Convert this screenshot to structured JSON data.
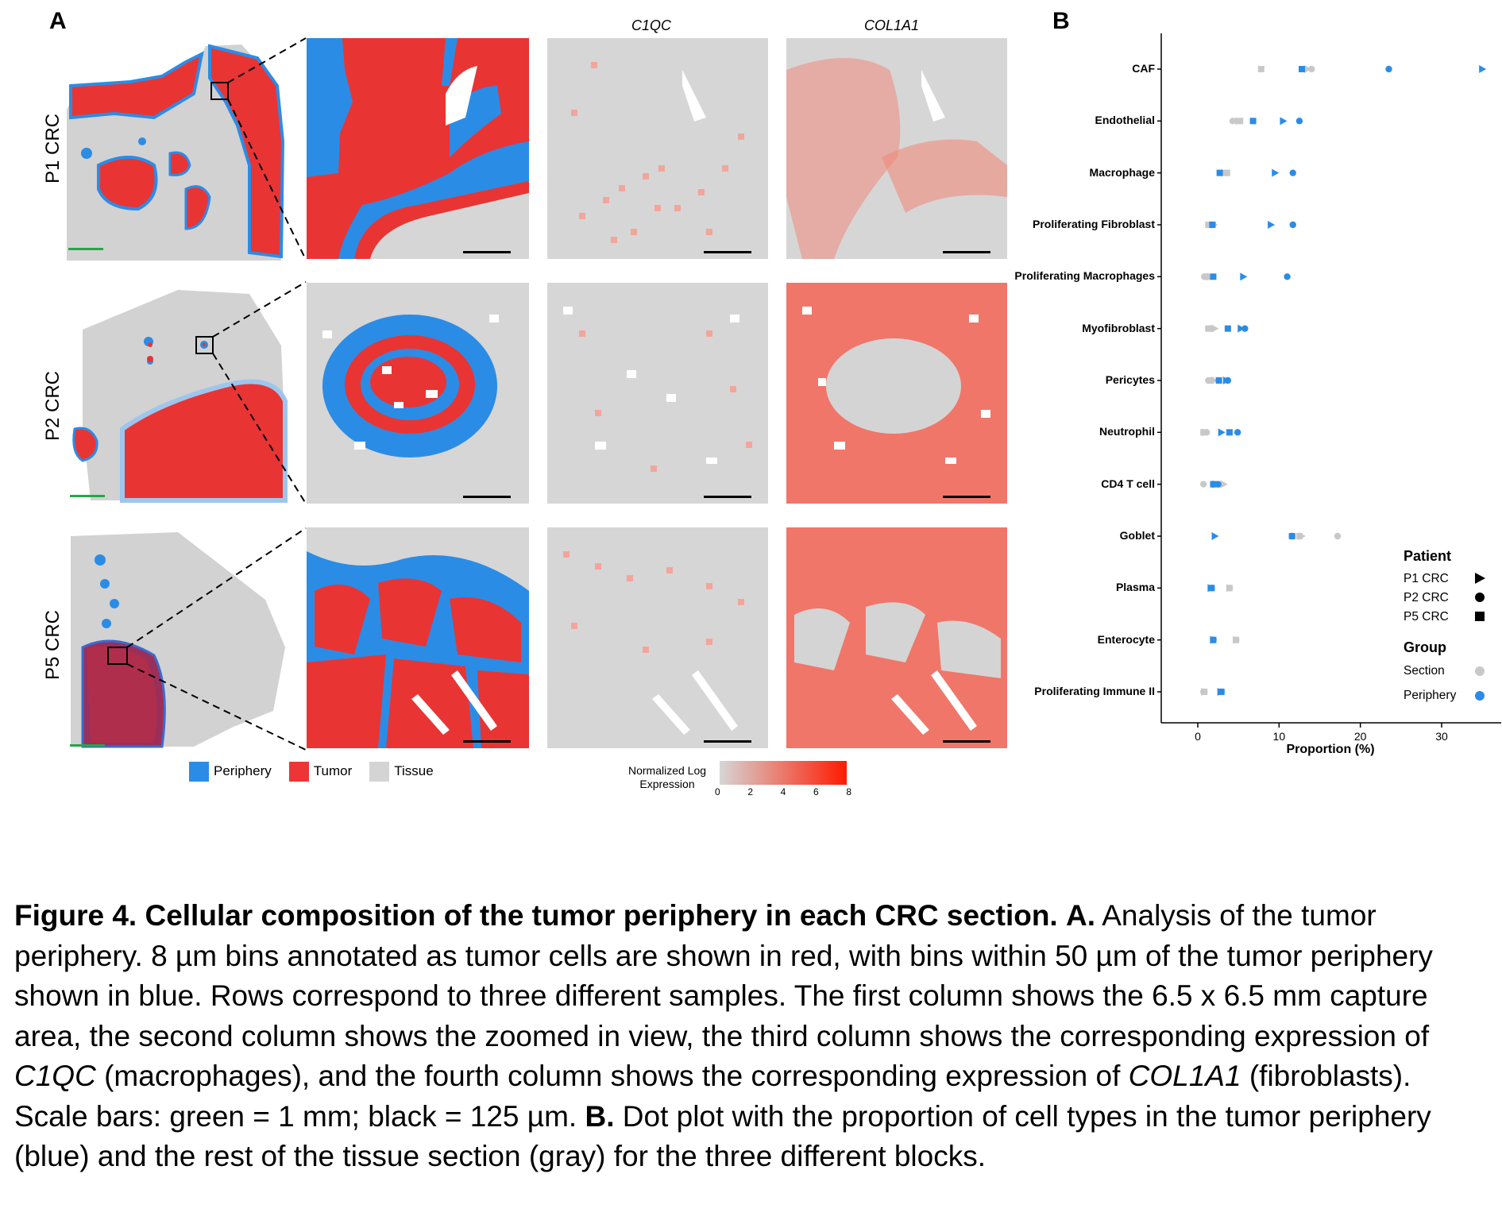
{
  "panel_a": {
    "letter": "A",
    "rows": [
      {
        "label": "P1 CRC"
      },
      {
        "label": "P2 CRC"
      },
      {
        "label": "P5 CRC"
      }
    ],
    "column_headers": [
      "C1QC",
      "COL1A1"
    ],
    "legend": [
      {
        "label": "Periphery",
        "color": "#2b8ce6"
      },
      {
        "label": "Tumor",
        "color": "#ee3535"
      },
      {
        "label": "Tissue",
        "color": "#d4d4d4"
      }
    ],
    "colorbar": {
      "title_line1": "Normalized Log",
      "title_line2": "Expression",
      "ticks": [
        "0",
        "2",
        "4",
        "6",
        "8"
      ],
      "low": "#d6d6d6",
      "high": "#ff1a00"
    }
  },
  "panel_b": {
    "letter": "B",
    "legend": {
      "patient_title": "Patient",
      "patients": [
        "P1 CRC",
        "P2 CRC",
        "P5 CRC"
      ],
      "group_title": "Group",
      "groups": [
        {
          "label": "Section",
          "color": "#c8c8c8"
        },
        {
          "label": "Periphery",
          "color": "#2b8ce6"
        }
      ]
    }
  },
  "chart_data": {
    "type": "scatter",
    "xlabel": "Proportion (%)",
    "xlim": [
      0,
      35
    ],
    "xticks": [
      "0",
      "10",
      "20",
      "30"
    ],
    "categories": [
      "CAF",
      "Endothelial",
      "Macrophage",
      "Proliferating Fibroblast",
      "Proliferating Macrophages",
      "Myofibroblast",
      "Pericytes",
      "Neutrophil",
      "CD4 T cell",
      "Goblet",
      "Plasma",
      "Enterocyte",
      "Proliferating Immune II"
    ],
    "series": [
      {
        "name": "Section",
        "shape": "P1 CRC",
        "values": [
          13.5,
          5.0,
          3.3,
          2.0,
          1.5,
          2.1,
          2.0,
          0.9,
          3.2,
          12.8,
          3.9,
          4.7,
          0.8
        ]
      },
      {
        "name": "Section",
        "shape": "P2 CRC",
        "values": [
          14.0,
          4.3,
          3.5,
          1.4,
          0.8,
          1.6,
          1.3,
          1.1,
          0.7,
          17.2,
          3.9,
          4.7,
          0.7
        ]
      },
      {
        "name": "Section",
        "shape": "P5 CRC",
        "values": [
          7.8,
          5.2,
          3.6,
          1.3,
          1.1,
          1.3,
          1.6,
          0.7,
          2.5,
          12.5,
          3.9,
          4.7,
          0.8
        ]
      },
      {
        "name": "Periphery",
        "shape": "P1 CRC",
        "values": [
          35.0,
          10.5,
          9.5,
          9.0,
          5.6,
          5.3,
          3.5,
          2.9,
          2.2,
          2.1,
          1.6,
          1.9,
          2.8
        ]
      },
      {
        "name": "Periphery",
        "shape": "P2 CRC",
        "values": [
          23.5,
          12.5,
          11.7,
          11.7,
          11.0,
          5.8,
          3.7,
          4.9,
          2.5,
          11.6,
          1.7,
          1.9,
          2.9
        ]
      },
      {
        "name": "Periphery",
        "shape": "P5 CRC",
        "values": [
          12.8,
          6.8,
          2.7,
          1.8,
          1.9,
          3.7,
          2.6,
          3.9,
          1.9,
          11.6,
          1.7,
          1.9,
          2.9
        ]
      }
    ]
  },
  "caption": {
    "fig_label": "Figure 4.",
    "fig_title": "Cellular composition of the tumor periphery in each CRC section.",
    "a_label": "A.",
    "a_text_1": "Analysis of the tumor periphery. 8 µm bins annotated as tumor cells are shown in red, with bins within 50 µm of the tumor periphery shown in blue. Rows correspond to three different samples. The first column shows the 6.5 x 6.5 mm capture area, the second column shows the zoomed in view, the third column shows the corresponding expression of",
    "gene1": "C1QC",
    "a_text_2": "(macrophages), and the fourth column shows the corresponding expression of",
    "gene2": "COL1A1",
    "a_text_3": "(fibroblasts). Scale bars: green = 1 mm; black = 125 µm.",
    "b_label": "B.",
    "b_text": "Dot plot with the proportion of cell types in the tumor periphery (blue) and the rest of the tissue section (gray) for the three different blocks."
  }
}
